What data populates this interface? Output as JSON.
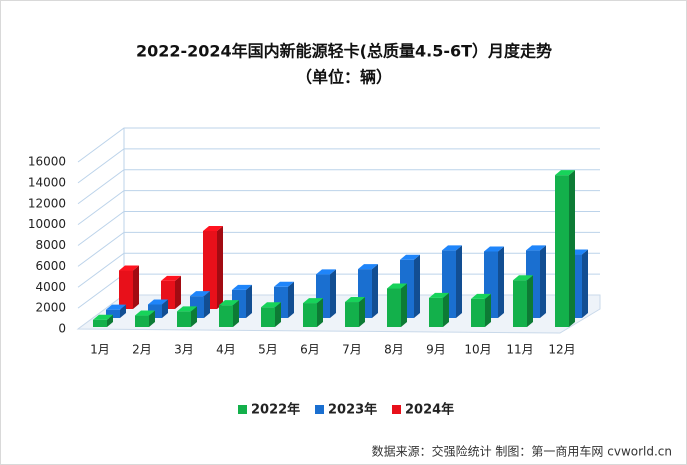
{
  "chart_data": {
    "type": "bar3d",
    "title": "2022-2024年国内新能源轻卡(总质量4.5-6T）月度走势",
    "subtitle": "（单位：辆）",
    "source": "数据来源：交强险统计  制图：第一商用车网 cvworld.cn",
    "categories": [
      "1月",
      "2月",
      "3月",
      "4月",
      "5月",
      "6月",
      "7月",
      "8月",
      "9月",
      "10月",
      "11月",
      "12月"
    ],
    "series": [
      {
        "name": "2022年",
        "color": "#13b04b",
        "values": [
          700,
          1100,
          1500,
          2100,
          1900,
          2300,
          2400,
          3700,
          2800,
          2700,
          4500,
          14600
        ]
      },
      {
        "name": "2023年",
        "color": "#1a6fd0",
        "values": [
          800,
          1300,
          2100,
          2700,
          3000,
          4200,
          4700,
          5600,
          6500,
          6400,
          6500,
          6100
        ]
      },
      {
        "name": "2024年",
        "color": "#e8101a",
        "values": [
          3700,
          2700,
          7500,
          null,
          null,
          null,
          null,
          null,
          null,
          null,
          null,
          null
        ]
      }
    ],
    "ylim": [
      0,
      16000
    ],
    "yticks": [
      0,
      2000,
      4000,
      6000,
      8000,
      10000,
      12000,
      14000,
      16000
    ],
    "grid": true,
    "legend": "bottom"
  }
}
